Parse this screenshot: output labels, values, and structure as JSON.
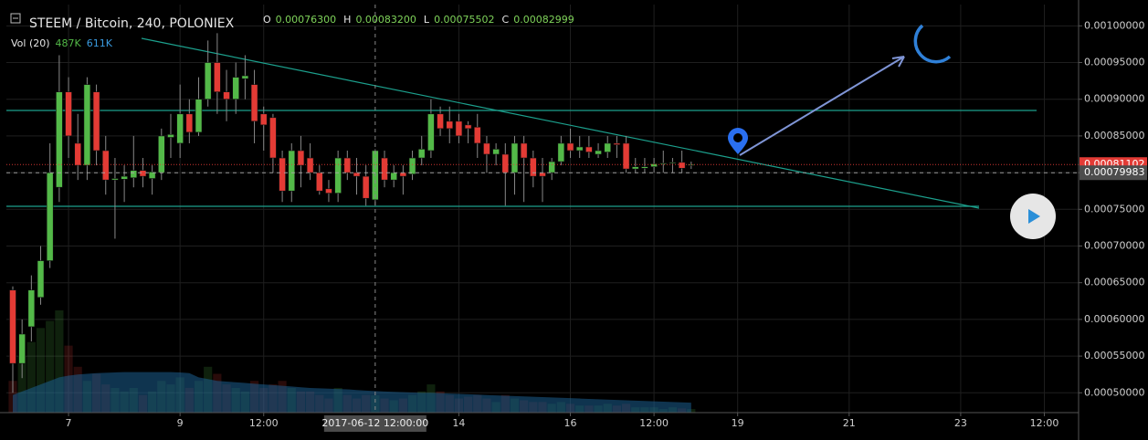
{
  "chart_data": {
    "type": "candlestick",
    "title": "STEEM / Bitcoin, 240, POLONIEX",
    "ohlc": [
      {
        "key": "O",
        "value": "0.00076300"
      },
      {
        "key": "H",
        "value": "0.00083200"
      },
      {
        "key": "L",
        "value": "0.00075502"
      },
      {
        "key": "C",
        "value": "0.00082999"
      }
    ],
    "volume_label": "Vol (20)",
    "volume_value": "487K",
    "volume_ma_value": "611K",
    "up_color": "#53b948",
    "down_color": "#e33b35",
    "grid": true,
    "xlim": [
      -26.75,
      434.75
    ],
    "ylim": [
      0.000473,
      0.001029
    ],
    "xticks": [
      {
        "value": 0,
        "label": "7"
      },
      {
        "value": 48,
        "label": "9"
      },
      {
        "value": 84,
        "label": "12:00"
      },
      {
        "value": 168,
        "label": "14"
      },
      {
        "value": 216,
        "label": "16"
      },
      {
        "value": 252,
        "label": "12:00"
      },
      {
        "value": 288,
        "label": "19"
      },
      {
        "value": 336,
        "label": "21"
      },
      {
        "value": 384,
        "label": "23"
      },
      {
        "value": 420,
        "label": "12:00"
      }
    ],
    "yticks": [
      {
        "value": 0.0005,
        "label": "0.00050000"
      },
      {
        "value": 0.00055,
        "label": "0.00055000"
      },
      {
        "value": 0.0006,
        "label": "0.00060000"
      },
      {
        "value": 0.00065,
        "label": "0.00065000"
      },
      {
        "value": 0.0007,
        "label": "0.00070000"
      },
      {
        "value": 0.00075,
        "label": "0.00075000"
      },
      {
        "value": 0.0008,
        "label": "0.00080000"
      },
      {
        "value": 0.00085,
        "label": "0.00085000"
      },
      {
        "value": 0.0009,
        "label": "0.00090000"
      },
      {
        "value": 0.00095,
        "label": "0.00095000"
      },
      {
        "value": 0.001,
        "label": "0.00100000"
      }
    ],
    "price_markers": [
      {
        "value": 0.00081102,
        "label": "0.00081102",
        "color": "#e33b35"
      },
      {
        "value": 0.00079983,
        "label": "0.00079983",
        "color": "#4d4d4d"
      }
    ],
    "crosshair": {
      "x": 132,
      "label": "2017-06-12 12:00:00"
    },
    "x": [
      -24,
      -20,
      -16,
      -12,
      -8,
      -4,
      0,
      4,
      8,
      12,
      16,
      20,
      24,
      28,
      32,
      36,
      40,
      44,
      48,
      52,
      56,
      60,
      64,
      68,
      72,
      76,
      80,
      84,
      88,
      92,
      96,
      100,
      104,
      108,
      112,
      116,
      120,
      124,
      128,
      132,
      136,
      140,
      144,
      148,
      152,
      156,
      160,
      164,
      168,
      172,
      176,
      180,
      184,
      188,
      192,
      196,
      200,
      204,
      208,
      212,
      216,
      220,
      224,
      228,
      232,
      236,
      240,
      244,
      248,
      252,
      256,
      260,
      264,
      268
    ],
    "open": [
      0.00064,
      0.00054,
      0.00059,
      0.00063,
      0.00068,
      0.00078,
      0.00091,
      0.00084,
      0.00081,
      0.00091,
      0.00083,
      0.00079,
      0.000791,
      0.000793,
      0.000803,
      0.000792,
      0.0008,
      0.000848,
      0.00084,
      0.00088,
      0.000855,
      0.0009,
      0.00095,
      0.00091,
      0.0009,
      0.000928,
      0.00092,
      0.00088,
      0.000875,
      0.00082,
      0.000775,
      0.00083,
      0.00082,
      0.0008,
      0.000778,
      0.000772,
      0.00082,
      0.0008,
      0.000795,
      0.000763,
      0.00082,
      0.00079,
      0.0008,
      0.000798,
      0.00082,
      0.00083,
      0.00088,
      0.00087,
      0.00087,
      0.000865,
      0.000862,
      0.00084,
      0.000825,
      0.000825,
      0.0008,
      0.00084,
      0.00082,
      0.0008,
      0.0008,
      0.000815,
      0.00084,
      0.00083,
      0.000835,
      0.000825,
      0.000828,
      0.00084,
      0.00084,
      0.000805,
      0.000806,
      0.000808,
      0.000812,
      0.000813,
      0.000814,
      0.00081
    ],
    "high": [
      0.000645,
      0.0006,
      0.00066,
      0.0007,
      0.00084,
      0.00096,
      0.00093,
      0.00088,
      0.00093,
      0.00092,
      0.00085,
      0.00082,
      0.00081,
      0.00085,
      0.00082,
      0.00081,
      0.00086,
      0.00088,
      0.00092,
      0.0009,
      0.00093,
      0.00098,
      0.00099,
      0.00094,
      0.00095,
      0.00096,
      0.00094,
      0.00089,
      0.00088,
      0.00083,
      0.00084,
      0.00085,
      0.00084,
      0.00081,
      0.00079,
      0.00083,
      0.00083,
      0.00082,
      0.00081,
      0.000832,
      0.00083,
      0.00081,
      0.00081,
      0.00083,
      0.00085,
      0.0009,
      0.00089,
      0.00089,
      0.00088,
      0.00087,
      0.00088,
      0.00085,
      0.00084,
      0.00084,
      0.00085,
      0.00085,
      0.00083,
      0.00082,
      0.00082,
      0.00085,
      0.00086,
      0.00085,
      0.00085,
      0.00084,
      0.00085,
      0.00085,
      0.00085,
      0.00082,
      0.00082,
      0.00082,
      0.00083,
      0.00082,
      0.00083,
      0.000815
    ],
    "low": [
      0.0005,
      0.00052,
      0.00057,
      0.00062,
      0.00067,
      0.00076,
      0.00082,
      0.00079,
      0.00079,
      0.00081,
      0.00077,
      0.00071,
      0.00076,
      0.00078,
      0.00078,
      0.00077,
      0.00079,
      0.00082,
      0.00082,
      0.00084,
      0.00085,
      0.00089,
      0.00088,
      0.00087,
      0.00088,
      0.0009,
      0.00084,
      0.00083,
      0.0008,
      0.00076,
      0.00076,
      0.00078,
      0.00079,
      0.00077,
      0.00076,
      0.00076,
      0.00079,
      0.00077,
      0.000755,
      0.00075502,
      0.00078,
      0.00078,
      0.00077,
      0.00079,
      0.00081,
      0.00082,
      0.00085,
      0.00084,
      0.00084,
      0.00084,
      0.00082,
      0.0008,
      0.00081,
      0.000755,
      0.00077,
      0.00076,
      0.00078,
      0.00076,
      0.00079,
      0.00081,
      0.00082,
      0.00082,
      0.00082,
      0.00082,
      0.00082,
      0.00082,
      0.0008,
      0.0008,
      0.0008,
      0.0008,
      0.0008,
      0.0008,
      0.0008,
      0.000805
    ],
    "close": [
      0.00054,
      0.00058,
      0.00064,
      0.00068,
      0.0008,
      0.00091,
      0.00085,
      0.00081,
      0.00092,
      0.00083,
      0.00079,
      0.000792,
      0.000795,
      0.000803,
      0.000795,
      0.000801,
      0.00085,
      0.000852,
      0.00088,
      0.000855,
      0.0009,
      0.00095,
      0.00091,
      0.0009,
      0.00093,
      0.000932,
      0.00087,
      0.000865,
      0.00082,
      0.000775,
      0.00083,
      0.00081,
      0.0008,
      0.000775,
      0.000772,
      0.00082,
      0.0008,
      0.000795,
      0.000765,
      0.00082999,
      0.00079,
      0.0008,
      0.000795,
      0.00082,
      0.000832,
      0.00088,
      0.00086,
      0.00086,
      0.00085,
      0.00086,
      0.00084,
      0.000825,
      0.000832,
      0.0008,
      0.00084,
      0.00082,
      0.000795,
      0.000795,
      0.000815,
      0.00084,
      0.00083,
      0.000835,
      0.000828,
      0.00083,
      0.00084,
      0.000838,
      0.000805,
      0.000808,
      0.000808,
      0.000812,
      0.000813,
      0.000814,
      0.000806,
      0.000811
    ],
    "volume": [
      900,
      1600,
      2000,
      2400,
      2600,
      2900,
      1900,
      1300,
      900,
      1100,
      800,
      700,
      600,
      700,
      500,
      600,
      900,
      800,
      1000,
      700,
      900,
      1300,
      1100,
      800,
      700,
      600,
      900,
      700,
      800,
      900,
      700,
      600,
      600,
      500,
      400,
      700,
      500,
      400,
      500,
      487,
      400,
      350,
      400,
      500,
      600,
      800,
      600,
      500,
      400,
      450,
      500,
      400,
      300,
      500,
      400,
      350,
      300,
      300,
      250,
      300,
      250,
      200,
      200,
      200,
      250,
      200,
      250,
      150,
      150,
      150,
      100,
      150,
      120,
      100
    ],
    "volume_ma": [
      500,
      600,
      700,
      800,
      900,
      1000,
      1050,
      1080,
      1100,
      1120,
      1130,
      1140,
      1150,
      1150,
      1150,
      1150,
      1150,
      1150,
      1140,
      1120,
      1000,
      950,
      900,
      880,
      860,
      840,
      820,
      800,
      780,
      760,
      740,
      720,
      700,
      690,
      680,
      670,
      660,
      640,
      625,
      611,
      600,
      590,
      580,
      570,
      560,
      560,
      550,
      540,
      530,
      520,
      510,
      500,
      490,
      480,
      470,
      460,
      450,
      440,
      430,
      420,
      410,
      400,
      390,
      380,
      370,
      360,
      350,
      340,
      330,
      320,
      310,
      300,
      290,
      280
    ]
  }
}
